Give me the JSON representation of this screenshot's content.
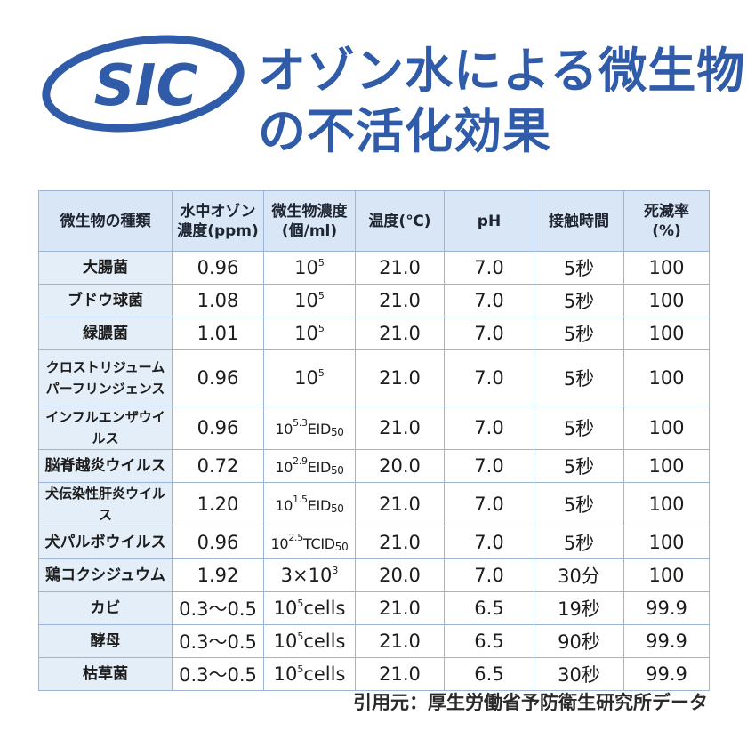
{
  "logo": {
    "text": "SIC"
  },
  "title": {
    "line1": "オゾン水による微生物",
    "line2": "の不活化効果"
  },
  "table": {
    "headers": [
      {
        "line1": "微生物の種類",
        "line2": ""
      },
      {
        "line1": "水中オゾン",
        "line2": "濃度(ppm)"
      },
      {
        "line1": "微生物濃度",
        "line2": "(個/ml)"
      },
      {
        "line1": "温度(℃)",
        "line2": ""
      },
      {
        "line1": "pH",
        "line2": ""
      },
      {
        "line1": "接触時間",
        "line2": ""
      },
      {
        "line1": "死滅率",
        "line2": "(%)"
      }
    ],
    "rows": [
      {
        "name1": "大腸菌",
        "name2": "",
        "ozone": "0.96",
        "base": "10",
        "exp": "5",
        "unit": "",
        "sub": "",
        "temp": "21.0",
        "ph": "7.0",
        "time": "5秒",
        "rate": "100"
      },
      {
        "name1": "ブドウ球菌",
        "name2": "",
        "ozone": "1.08",
        "base": "10",
        "exp": "5",
        "unit": "",
        "sub": "",
        "temp": "21.0",
        "ph": "7.0",
        "time": "5秒",
        "rate": "100"
      },
      {
        "name1": "緑膿菌",
        "name2": "",
        "ozone": "1.01",
        "base": "10",
        "exp": "5",
        "unit": "",
        "sub": "",
        "temp": "21.0",
        "ph": "7.0",
        "time": "5秒",
        "rate": "100"
      },
      {
        "name1": "クロストリジューム",
        "name2": "パーフリンジェンス",
        "ozone": "0.96",
        "base": "10",
        "exp": "5",
        "unit": "",
        "sub": "",
        "temp": "21.0",
        "ph": "7.0",
        "time": "5秒",
        "rate": "100"
      },
      {
        "name1": "インフルエンザウイルス",
        "name2": "",
        "ozone": "0.96",
        "base": "10",
        "exp": "5.3",
        "unit": "EID",
        "sub": "50",
        "temp": "21.0",
        "ph": "7.0",
        "time": "5秒",
        "rate": "100"
      },
      {
        "name1": "脳脊越炎ウイルス",
        "name2": "",
        "ozone": "0.72",
        "base": "10",
        "exp": "2.9",
        "unit": "EID",
        "sub": "50",
        "temp": "20.0",
        "ph": "7.0",
        "time": "5秒",
        "rate": "100"
      },
      {
        "name1": "犬伝染性肝炎ウイルス",
        "name2": "",
        "ozone": "1.20",
        "base": "10",
        "exp": "1.5",
        "unit": "EID",
        "sub": "50",
        "temp": "21.0",
        "ph": "7.0",
        "time": "5秒",
        "rate": "100"
      },
      {
        "name1": "犬パルボウイルス",
        "name2": "",
        "ozone": "0.96",
        "base": "10",
        "exp": "2.5",
        "unit": "TCID",
        "sub": "50",
        "temp": "21.0",
        "ph": "7.0",
        "time": "5秒",
        "rate": "100"
      },
      {
        "name1": "鶏コクシジュウム",
        "name2": "",
        "ozone": "1.92",
        "base": "3×10",
        "exp": "3",
        "unit": "",
        "sub": "",
        "temp": "20.0",
        "ph": "7.0",
        "time": "30分",
        "rate": "100"
      },
      {
        "name1": "カビ",
        "name2": "",
        "ozone": "0.3～0.5",
        "base": "10",
        "exp": "5",
        "unit": "cells",
        "sub": "",
        "temp": "21.0",
        "ph": "6.5",
        "time": "19秒",
        "rate": "99.9"
      },
      {
        "name1": "酵母",
        "name2": "",
        "ozone": "0.3～0.5",
        "base": "10",
        "exp": "5",
        "unit": "cells",
        "sub": "",
        "temp": "21.0",
        "ph": "6.5",
        "time": "90秒",
        "rate": "99.9"
      },
      {
        "name1": "枯草菌",
        "name2": "",
        "ozone": "0.3～0.5",
        "base": "10",
        "exp": "5",
        "unit": "cells",
        "sub": "",
        "temp": "21.0",
        "ph": "6.5",
        "time": "30秒",
        "rate": "99.9"
      }
    ]
  },
  "source": "引用元：厚生労働省予防衛生研究所データ",
  "colors": {
    "accent": "#2f5ba8",
    "header_bg": "#d8e6f6",
    "name_bg": "#e4eef9",
    "border": "#9bb4d8"
  }
}
